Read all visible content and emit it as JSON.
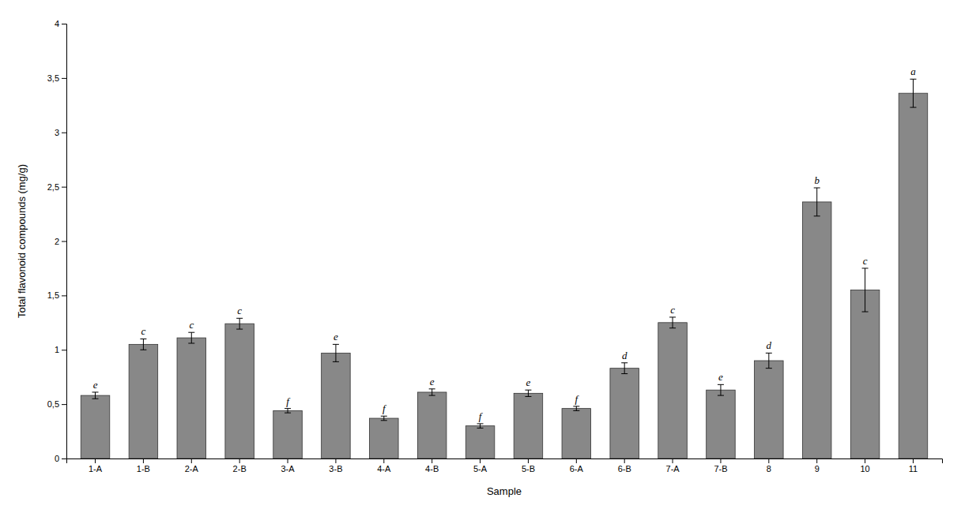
{
  "chart_data": {
    "type": "bar",
    "categories": [
      "1-A",
      "1-B",
      "2-A",
      "2-B",
      "3-A",
      "3-B",
      "4-A",
      "4-B",
      "5-A",
      "5-B",
      "6-A",
      "6-B",
      "7-A",
      "7-B",
      "8",
      "9",
      "10",
      "11"
    ],
    "values": [
      0.58,
      1.05,
      1.11,
      1.24,
      0.44,
      0.97,
      0.37,
      0.61,
      0.3,
      0.6,
      0.46,
      0.83,
      1.25,
      0.63,
      0.9,
      2.36,
      1.55,
      3.36
    ],
    "errors": [
      0.03,
      0.05,
      0.05,
      0.05,
      0.02,
      0.08,
      0.02,
      0.03,
      0.02,
      0.03,
      0.02,
      0.05,
      0.05,
      0.05,
      0.07,
      0.13,
      0.2,
      0.13
    ],
    "annotations": [
      "e",
      "c",
      "c",
      "c",
      "f",
      "e",
      "f",
      "e",
      "f",
      "e",
      "f",
      "d",
      "c",
      "e",
      "d",
      "b",
      "c",
      "a"
    ],
    "color": "#888888",
    "xlabel": "Sample",
    "ylabel": "Total flavonoid compounds (mg/g)",
    "ylim": [
      0,
      4.0
    ],
    "yticks": [
      0,
      {
        "value": 0.5,
        "label": "0,5"
      },
      1,
      {
        "value": 1.5,
        "label": "1,5"
      },
      2,
      {
        "value": 2.5,
        "label": "2,5"
      },
      3,
      {
        "value": 3.5,
        "label": "3,5"
      },
      4
    ],
    "grid": false
  }
}
